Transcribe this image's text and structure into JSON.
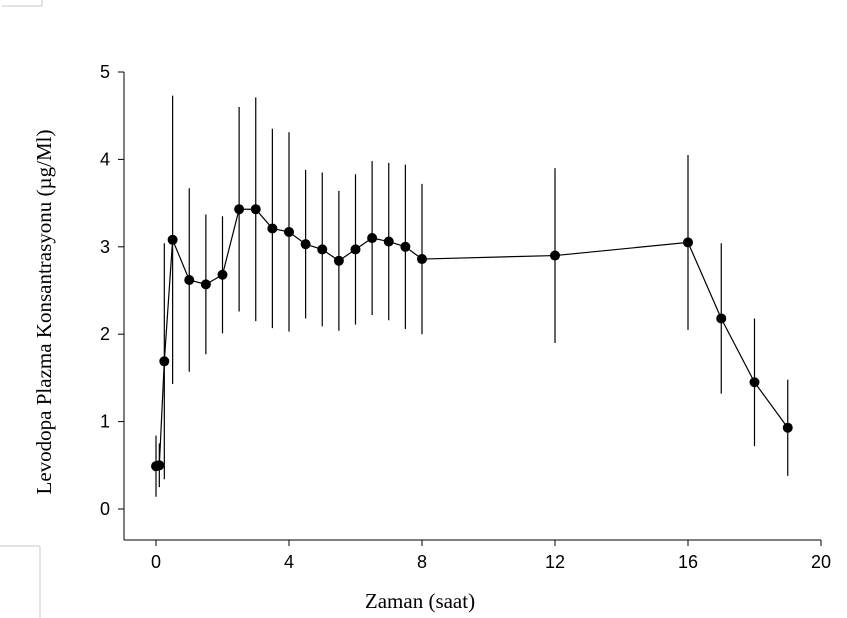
{
  "chart_data": {
    "type": "line",
    "title": "",
    "xlabel": "Zaman (saat)",
    "ylabel": "Levodopa Plazma Konsantrasyonu (µg/Ml)",
    "xlim": [
      0,
      20
    ],
    "ylim": [
      0,
      5
    ],
    "xticks": [
      0,
      4,
      8,
      12,
      16,
      20
    ],
    "yticks": [
      0,
      1,
      2,
      3,
      4,
      5
    ],
    "xtick_labels": [
      "0",
      "4",
      "8",
      "12",
      "16",
      "20"
    ],
    "ytick_labels": [
      "0",
      "1",
      "2",
      "3",
      "4",
      "5"
    ],
    "grid": false,
    "legend": "none",
    "series": [
      {
        "color": "#000000",
        "marker": "circle",
        "points": [
          {
            "x": 0.0,
            "y": 0.49,
            "err": 0.35
          },
          {
            "x": 0.1,
            "y": 0.5,
            "err": 0.25
          },
          {
            "x": 0.25,
            "y": 1.69,
            "err": 1.35
          },
          {
            "x": 0.5,
            "y": 3.08,
            "err": 1.65
          },
          {
            "x": 1.0,
            "y": 2.62,
            "err": 1.05
          },
          {
            "x": 1.5,
            "y": 2.57,
            "err": 0.8
          },
          {
            "x": 2.0,
            "y": 2.68,
            "err": 0.67
          },
          {
            "x": 2.5,
            "y": 3.43,
            "err": 1.17
          },
          {
            "x": 3.0,
            "y": 3.43,
            "err": 1.28
          },
          {
            "x": 3.5,
            "y": 3.21,
            "err": 1.14
          },
          {
            "x": 4.0,
            "y": 3.17,
            "err": 1.14
          },
          {
            "x": 4.5,
            "y": 3.03,
            "err": 0.85
          },
          {
            "x": 5.0,
            "y": 2.97,
            "err": 0.88
          },
          {
            "x": 5.5,
            "y": 2.84,
            "err": 0.8
          },
          {
            "x": 6.0,
            "y": 2.97,
            "err": 0.86
          },
          {
            "x": 6.5,
            "y": 3.1,
            "err": 0.88
          },
          {
            "x": 7.0,
            "y": 3.06,
            "err": 0.9
          },
          {
            "x": 7.5,
            "y": 3.0,
            "err": 0.94
          },
          {
            "x": 8.0,
            "y": 2.86,
            "err": 0.86
          },
          {
            "x": 12.0,
            "y": 2.9,
            "err": 1.0
          },
          {
            "x": 16.0,
            "y": 3.05,
            "err": 1.0
          },
          {
            "x": 17.0,
            "y": 2.18,
            "err": 0.86
          },
          {
            "x": 18.0,
            "y": 1.45,
            "err": 0.73
          },
          {
            "x": 19.0,
            "y": 0.93,
            "err": 0.55
          }
        ]
      }
    ]
  }
}
